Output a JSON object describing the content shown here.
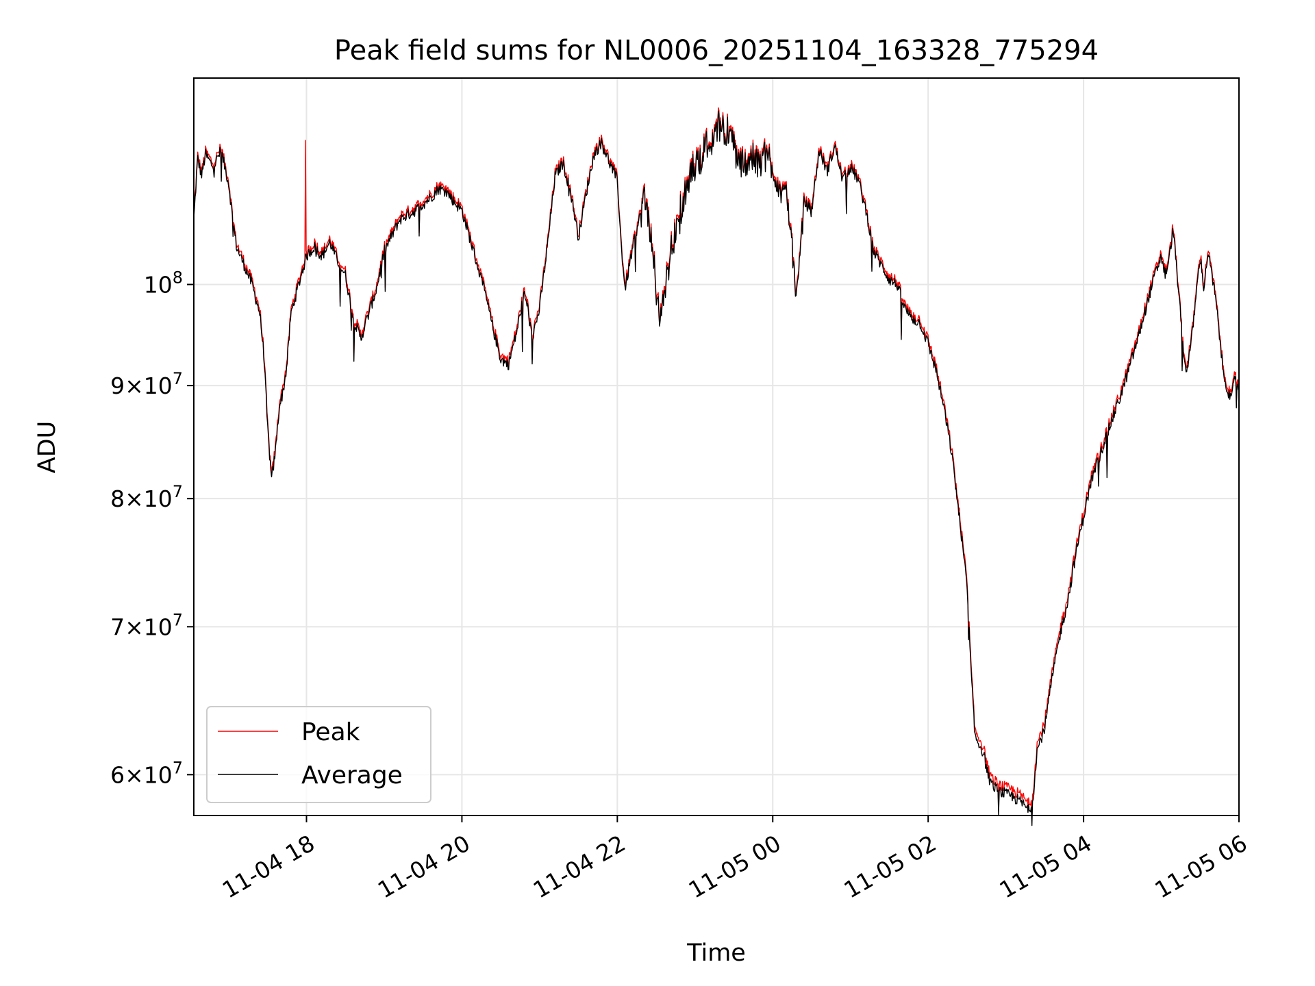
{
  "chart_data": {
    "type": "line",
    "title": "Peak field sums for NL0006_20251104_163328_775294",
    "xlabel": "Time",
    "ylabel": "ADU",
    "yscale": "log",
    "ylim": [
      57500000,
      124000000
    ],
    "xlim_hours": [
      -1.45,
      12.0
    ],
    "x_unit": "hours relative to 2025-11-04 18:00",
    "x_ticks": [
      {
        "label": "11-04 18",
        "value": 0
      },
      {
        "label": "11-04 20",
        "value": 2
      },
      {
        "label": "11-04 22",
        "value": 4
      },
      {
        "label": "11-05 00",
        "value": 6
      },
      {
        "label": "11-05 02",
        "value": 8
      },
      {
        "label": "11-05 04",
        "value": 10
      },
      {
        "label": "11-05 06",
        "value": 12
      }
    ],
    "y_ticks": [
      {
        "mantissa": "6",
        "exp": "7",
        "value": 60000000
      },
      {
        "mantissa": "7",
        "exp": "7",
        "value": 70000000
      },
      {
        "mantissa": "8",
        "exp": "7",
        "value": 80000000
      },
      {
        "mantissa": "9",
        "exp": "7",
        "value": 90000000
      },
      {
        "mantissa": "",
        "exp": "8",
        "value": 100000000
      }
    ],
    "grid": true,
    "legend_position": "lower-left",
    "series": [
      {
        "name": "Peak",
        "color": "#ff0000",
        "offset": 400000,
        "spikes": [
          [
            -0.01,
            116200000
          ]
        ]
      },
      {
        "name": "Average",
        "color": "#000000",
        "offset": 0,
        "spikes": []
      }
    ],
    "base_points": [
      [
        -1.45,
        107000000
      ],
      [
        -1.4,
        114000000
      ],
      [
        -1.35,
        112000000
      ],
      [
        -1.3,
        114500000
      ],
      [
        -1.2,
        113000000
      ],
      [
        -1.1,
        115000000
      ],
      [
        -1.0,
        111000000
      ],
      [
        -0.95,
        107000000
      ],
      [
        -0.9,
        104000000
      ],
      [
        -0.8,
        102000000
      ],
      [
        -0.7,
        100000000
      ],
      [
        -0.6,
        97000000
      ],
      [
        -0.55,
        93000000
      ],
      [
        -0.5,
        86000000
      ],
      [
        -0.45,
        81500000
      ],
      [
        -0.4,
        84000000
      ],
      [
        -0.35,
        88000000
      ],
      [
        -0.3,
        89500000
      ],
      [
        -0.25,
        92000000
      ],
      [
        -0.2,
        97000000
      ],
      [
        -0.1,
        100000000
      ],
      [
        0.0,
        103000000
      ],
      [
        0.1,
        104000000
      ],
      [
        0.2,
        103000000
      ],
      [
        0.3,
        104500000
      ],
      [
        0.4,
        102500000
      ],
      [
        0.5,
        101000000
      ],
      [
        0.6,
        96500000
      ],
      [
        0.7,
        94500000
      ],
      [
        0.8,
        97000000
      ],
      [
        0.9,
        99500000
      ],
      [
        1.0,
        103500000
      ],
      [
        1.2,
        107000000
      ],
      [
        1.4,
        108000000
      ],
      [
        1.6,
        109500000
      ],
      [
        1.7,
        110500000
      ],
      [
        1.8,
        110200000
      ],
      [
        1.9,
        109000000
      ],
      [
        2.0,
        108000000
      ],
      [
        2.1,
        105000000
      ],
      [
        2.2,
        102000000
      ],
      [
        2.3,
        99000000
      ],
      [
        2.4,
        95500000
      ],
      [
        2.5,
        92500000
      ],
      [
        2.6,
        92000000
      ],
      [
        2.7,
        95000000
      ],
      [
        2.8,
        99000000
      ],
      [
        2.85,
        97500000
      ],
      [
        2.9,
        94500000
      ],
      [
        3.0,
        97500000
      ],
      [
        3.1,
        104000000
      ],
      [
        3.2,
        112000000
      ],
      [
        3.3,
        113500000
      ],
      [
        3.4,
        110000000
      ],
      [
        3.5,
        105000000
      ],
      [
        3.6,
        110000000
      ],
      [
        3.7,
        114500000
      ],
      [
        3.8,
        116000000
      ],
      [
        3.9,
        113500000
      ],
      [
        4.0,
        111500000
      ],
      [
        4.05,
        104000000
      ],
      [
        4.1,
        99500000
      ],
      [
        4.2,
        104000000
      ],
      [
        4.35,
        109500000
      ],
      [
        4.45,
        104000000
      ],
      [
        4.5,
        98500000
      ],
      [
        4.55,
        96500000
      ],
      [
        4.65,
        101500000
      ],
      [
        4.75,
        106000000
      ],
      [
        4.85,
        109000000
      ],
      [
        4.95,
        112000000
      ],
      [
        5.1,
        115000000
      ],
      [
        5.2,
        116000000
      ],
      [
        5.3,
        118000000
      ],
      [
        5.4,
        117500000
      ],
      [
        5.5,
        115500000
      ],
      [
        5.6,
        113000000
      ],
      [
        5.7,
        114000000
      ],
      [
        5.8,
        113500000
      ],
      [
        5.9,
        114500000
      ],
      [
        6.0,
        113000000
      ],
      [
        6.1,
        110000000
      ],
      [
        6.2,
        109000000
      ],
      [
        6.25,
        104000000
      ],
      [
        6.3,
        98500000
      ],
      [
        6.35,
        103000000
      ],
      [
        6.4,
        109000000
      ],
      [
        6.5,
        108000000
      ],
      [
        6.6,
        115000000
      ],
      [
        6.7,
        112500000
      ],
      [
        6.8,
        115500000
      ],
      [
        6.9,
        111500000
      ],
      [
        7.0,
        113000000
      ],
      [
        7.1,
        111500000
      ],
      [
        7.2,
        108000000
      ],
      [
        7.3,
        103500000
      ],
      [
        7.4,
        102000000
      ],
      [
        7.5,
        100500000
      ],
      [
        7.6,
        100000000
      ],
      [
        7.7,
        97500000
      ],
      [
        7.8,
        96500000
      ],
      [
        7.9,
        96000000
      ],
      [
        8.0,
        94000000
      ],
      [
        8.1,
        91500000
      ],
      [
        8.2,
        88000000
      ],
      [
        8.3,
        84000000
      ],
      [
        8.4,
        78500000
      ],
      [
        8.5,
        73000000
      ],
      [
        8.55,
        67000000
      ],
      [
        8.6,
        62500000
      ],
      [
        8.7,
        61500000
      ],
      [
        8.8,
        59500000
      ],
      [
        8.9,
        59000000
      ],
      [
        9.0,
        58800000
      ],
      [
        9.1,
        58600000
      ],
      [
        9.2,
        58300000
      ],
      [
        9.3,
        57800000
      ],
      [
        9.35,
        58500000
      ],
      [
        9.4,
        61500000
      ],
      [
        9.5,
        63000000
      ],
      [
        9.6,
        66500000
      ],
      [
        9.7,
        69500000
      ],
      [
        9.8,
        72000000
      ],
      [
        9.9,
        75500000
      ],
      [
        10.0,
        78500000
      ],
      [
        10.1,
        81500000
      ],
      [
        10.2,
        83500000
      ],
      [
        10.3,
        85500000
      ],
      [
        10.4,
        87500000
      ],
      [
        10.5,
        89500000
      ],
      [
        10.6,
        92000000
      ],
      [
        10.7,
        94500000
      ],
      [
        10.8,
        97500000
      ],
      [
        10.9,
        100500000
      ],
      [
        11.0,
        103000000
      ],
      [
        11.05,
        101000000
      ],
      [
        11.1,
        102500000
      ],
      [
        11.15,
        106000000
      ],
      [
        11.2,
        101500000
      ],
      [
        11.25,
        96500000
      ],
      [
        11.3,
        92000000
      ],
      [
        11.33,
        91500000
      ],
      [
        11.4,
        95000000
      ],
      [
        11.45,
        99000000
      ],
      [
        11.5,
        103000000
      ],
      [
        11.55,
        99500000
      ],
      [
        11.6,
        103500000
      ],
      [
        11.7,
        98500000
      ],
      [
        11.8,
        91000000
      ],
      [
        11.9,
        88500000
      ],
      [
        11.95,
        91000000
      ],
      [
        12.0,
        89500000
      ]
    ]
  },
  "legend": {
    "items": [
      {
        "label": "Peak",
        "color": "#ff0000"
      },
      {
        "label": "Average",
        "color": "#000000"
      }
    ]
  }
}
